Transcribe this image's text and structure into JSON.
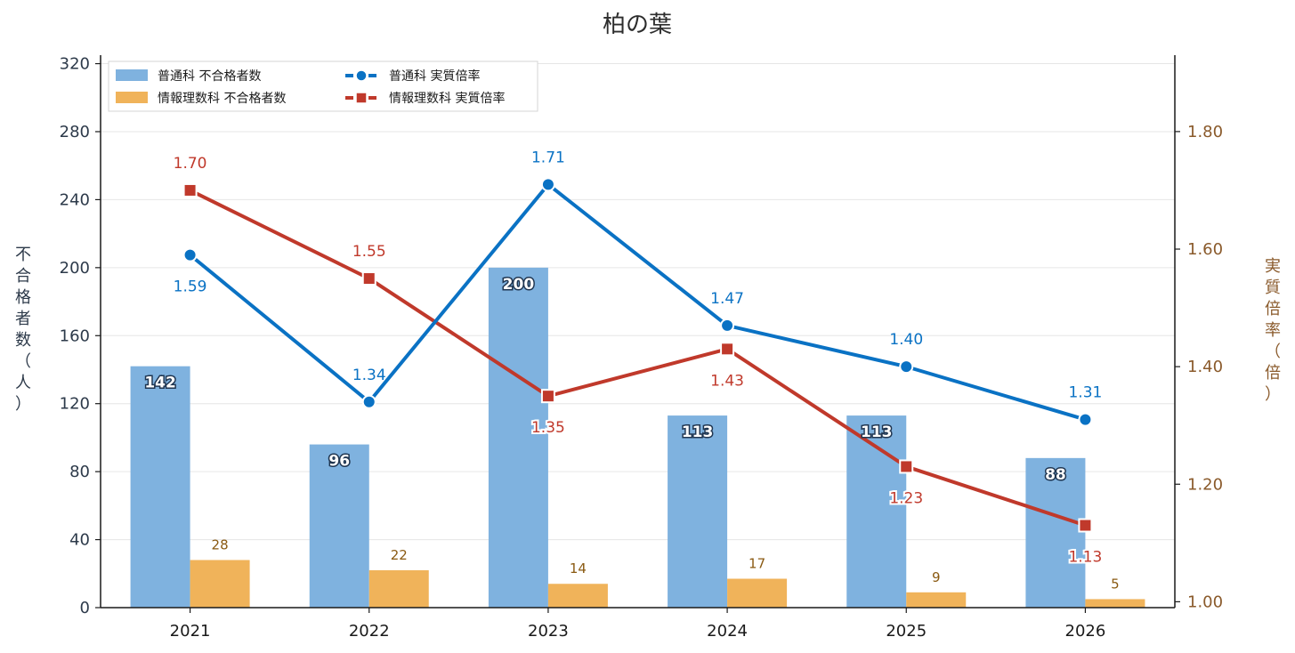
{
  "chart_data": {
    "type": "bar",
    "title": "柏の葉",
    "categories": [
      "2021",
      "2022",
      "2023",
      "2024",
      "2025",
      "2026"
    ],
    "ylabel": "不合格者数（人）",
    "y2label": "実質倍率（倍）",
    "ylim": [
      0,
      325
    ],
    "y_ticks": [
      0,
      40,
      80,
      120,
      160,
      200,
      240,
      280,
      320
    ],
    "y2lim": [
      0.99,
      1.93
    ],
    "y2_ticks": [
      "1.00",
      "1.20",
      "1.40",
      "1.60",
      "1.80"
    ],
    "grid": true,
    "legend_position": "top-left",
    "bar_series": [
      {
        "name": "普通科 不合格者数",
        "color": "#7fb2df",
        "values": [
          142,
          96,
          200,
          113,
          113,
          88
        ],
        "labels": [
          "142",
          "96",
          "200",
          "113",
          "113",
          "88"
        ]
      },
      {
        "name": "情報理数科 不合格者数",
        "color": "#f0b35a",
        "values": [
          28,
          22,
          14,
          17,
          9,
          5
        ],
        "labels": [
          "28",
          "22",
          "14",
          "17",
          "9",
          "5"
        ]
      }
    ],
    "line_series": [
      {
        "name": "普通科 実質倍率",
        "color": "#0a72c4",
        "marker": "circle",
        "values": [
          1.59,
          1.34,
          1.71,
          1.47,
          1.4,
          1.31
        ],
        "labels": [
          "1.59",
          "1.34",
          "1.71",
          "1.47",
          "1.40",
          "1.31"
        ]
      },
      {
        "name": "情報理数科 実質倍率",
        "color": "#c0392b",
        "marker": "square",
        "values": [
          1.7,
          1.55,
          1.35,
          1.43,
          1.23,
          1.13
        ],
        "labels": [
          "1.70",
          "1.55",
          "1.35",
          "1.43",
          "1.23",
          "1.13"
        ]
      }
    ]
  }
}
